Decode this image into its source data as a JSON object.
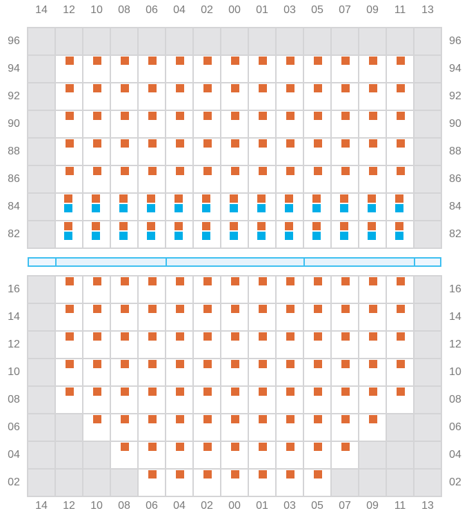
{
  "columns": [
    "14",
    "12",
    "10",
    "08",
    "06",
    "04",
    "02",
    "00",
    "01",
    "03",
    "05",
    "07",
    "09",
    "11",
    "13"
  ],
  "colors": {
    "seat_orange": "#e06c35",
    "seat_blue": "#00aee8",
    "unavailable": "#e3e3e5",
    "divider": "#3dbff0"
  },
  "legend_cells": {
    "x": "unavailable",
    "o": "orange-seat",
    "ob": "orange-and-blue-seat"
  },
  "top_section": [
    {
      "label": "96",
      "cells": [
        "x",
        "x",
        "x",
        "x",
        "x",
        "x",
        "x",
        "x",
        "x",
        "x",
        "x",
        "x",
        "x",
        "x",
        "x"
      ]
    },
    {
      "label": "94",
      "cells": [
        "x",
        "o",
        "o",
        "o",
        "o",
        "o",
        "o",
        "o",
        "o",
        "o",
        "o",
        "o",
        "o",
        "o",
        "x"
      ]
    },
    {
      "label": "92",
      "cells": [
        "x",
        "o",
        "o",
        "o",
        "o",
        "o",
        "o",
        "o",
        "o",
        "o",
        "o",
        "o",
        "o",
        "o",
        "x"
      ]
    },
    {
      "label": "90",
      "cells": [
        "x",
        "o",
        "o",
        "o",
        "o",
        "o",
        "o",
        "o",
        "o",
        "o",
        "o",
        "o",
        "o",
        "o",
        "x"
      ]
    },
    {
      "label": "88",
      "cells": [
        "x",
        "o",
        "o",
        "o",
        "o",
        "o",
        "o",
        "o",
        "o",
        "o",
        "o",
        "o",
        "o",
        "o",
        "x"
      ]
    },
    {
      "label": "86",
      "cells": [
        "x",
        "o",
        "o",
        "o",
        "o",
        "o",
        "o",
        "o",
        "o",
        "o",
        "o",
        "o",
        "o",
        "o",
        "x"
      ]
    },
    {
      "label": "84",
      "cells": [
        "x",
        "ob",
        "ob",
        "ob",
        "ob",
        "ob",
        "ob",
        "ob",
        "ob",
        "ob",
        "ob",
        "ob",
        "ob",
        "ob",
        "x"
      ]
    },
    {
      "label": "82",
      "cells": [
        "x",
        "ob",
        "ob",
        "ob",
        "ob",
        "ob",
        "ob",
        "ob",
        "ob",
        "ob",
        "ob",
        "ob",
        "ob",
        "ob",
        "x"
      ]
    }
  ],
  "bottom_section": [
    {
      "label": "16",
      "cells": [
        "x",
        "o",
        "o",
        "o",
        "o",
        "o",
        "o",
        "o",
        "o",
        "o",
        "o",
        "o",
        "o",
        "o",
        "x"
      ]
    },
    {
      "label": "14",
      "cells": [
        "x",
        "o",
        "o",
        "o",
        "o",
        "o",
        "o",
        "o",
        "o",
        "o",
        "o",
        "o",
        "o",
        "o",
        "x"
      ]
    },
    {
      "label": "12",
      "cells": [
        "x",
        "o",
        "o",
        "o",
        "o",
        "o",
        "o",
        "o",
        "o",
        "o",
        "o",
        "o",
        "o",
        "o",
        "x"
      ]
    },
    {
      "label": "10",
      "cells": [
        "x",
        "o",
        "o",
        "o",
        "o",
        "o",
        "o",
        "o",
        "o",
        "o",
        "o",
        "o",
        "o",
        "o",
        "x"
      ]
    },
    {
      "label": "08",
      "cells": [
        "x",
        "o",
        "o",
        "o",
        "o",
        "o",
        "o",
        "o",
        "o",
        "o",
        "o",
        "o",
        "o",
        "o",
        "x"
      ]
    },
    {
      "label": "06",
      "cells": [
        "x",
        "x",
        "o",
        "o",
        "o",
        "o",
        "o",
        "o",
        "o",
        "o",
        "o",
        "o",
        "o",
        "x",
        "x"
      ]
    },
    {
      "label": "04",
      "cells": [
        "x",
        "x",
        "x",
        "o",
        "o",
        "o",
        "o",
        "o",
        "o",
        "o",
        "o",
        "o",
        "x",
        "x",
        "x"
      ]
    },
    {
      "label": "02",
      "cells": [
        "x",
        "x",
        "x",
        "x",
        "o",
        "o",
        "o",
        "o",
        "o",
        "o",
        "o",
        "x",
        "x",
        "x",
        "x"
      ]
    }
  ],
  "divider_segments": [
    1,
    4,
    5,
    4,
    1
  ]
}
